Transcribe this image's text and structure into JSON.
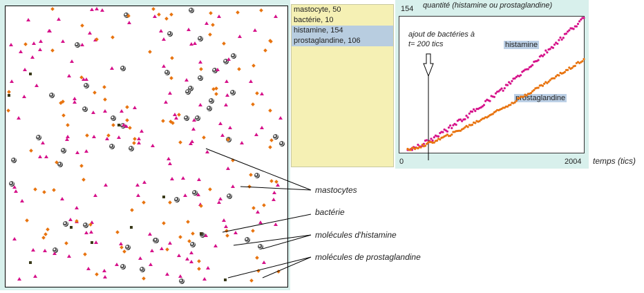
{
  "monitor": {
    "rows": [
      {
        "label": "mastocyte",
        "value": "50"
      },
      {
        "label": "bactérie",
        "value": "10"
      },
      {
        "label": "histamine",
        "value": "154"
      },
      {
        "label": "prostaglandine",
        "value": "106"
      }
    ]
  },
  "plot": {
    "ymax": "154",
    "xmin": "0",
    "xmax": "2004",
    "y_title": "quantité (histamine ou prostaglandine)",
    "x_title": "temps (tics)",
    "annotation_line1": "ajout de bactéries à",
    "annotation_line2": "t= 200 tics",
    "series_labels": {
      "histamine": "histamine",
      "prostaglandine": "prostaglandine"
    }
  },
  "legend": {
    "mastocytes": "mastocytes",
    "bacterie": "bactérie",
    "histamine": "molécules d'histamine",
    "prostaglandine": "molécules de prostaglandine"
  },
  "colors": {
    "histamine": "#d6128a",
    "prostaglandine": "#e87410",
    "bacterie": "#3a3a1a",
    "background": "#d8f0ec",
    "monitor": "#f5f0b4"
  }
}
